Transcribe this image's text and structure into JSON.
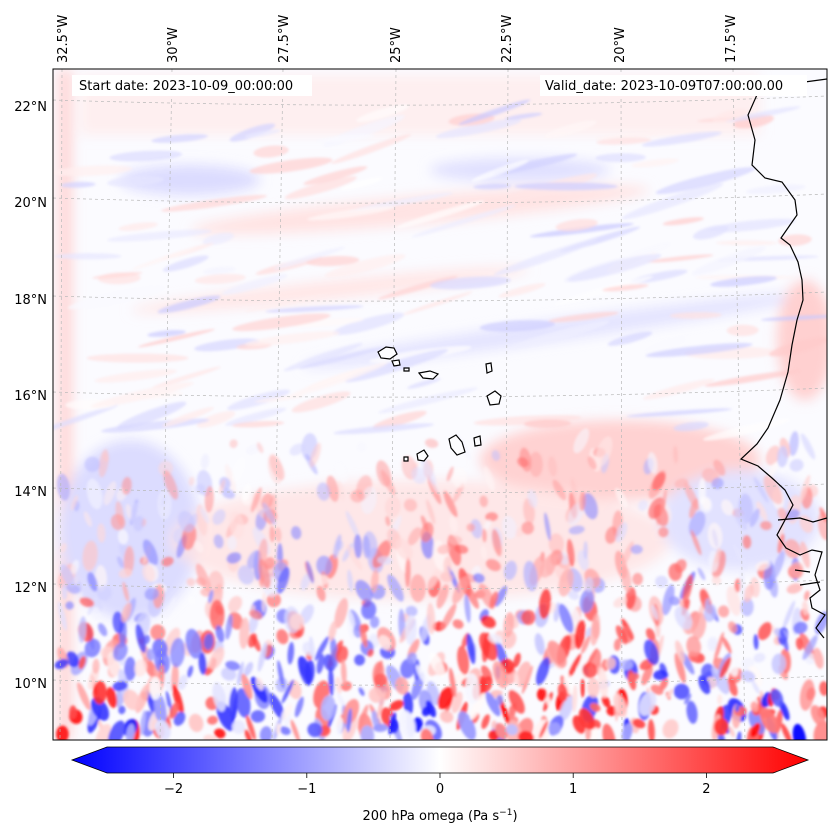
{
  "map": {
    "start_date": "Start date: 2023-10-09_00:00:00",
    "valid_date": "Valid_date: 2023-10-09T07:00:00.00",
    "lon_labels": [
      "32.5°W",
      "30°W",
      "27.5°W",
      "25°W",
      "22.5°W",
      "20°W",
      "17.5°W"
    ],
    "lat_labels": [
      "22°N",
      "20°N",
      "18°N",
      "16°N",
      "14°N",
      "12°N",
      "10°N"
    ],
    "field_description": "200 hPa omega",
    "islands": "Cabo Verde",
    "coastline": "West Africa"
  },
  "colorbar": {
    "title": "200 hPa omega (Pa s",
    "title_sup": "−1",
    "title_close": ")",
    "tick_labels": [
      "−2",
      "−1",
      "0",
      "1",
      "2"
    ],
    "tick_values": [
      -2,
      -1,
      0,
      1,
      2
    ],
    "vmin": -2.5,
    "vmax": 2.5,
    "colors": {
      "low": "#0000ff",
      "mid": "#ffffff",
      "high": "#ff0000"
    }
  }
}
